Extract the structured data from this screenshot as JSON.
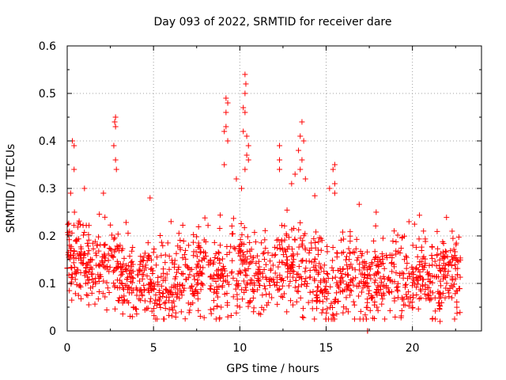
{
  "chart_data": {
    "type": "scatter",
    "title": "Day 093 of 2022, SRMTID for receiver dare",
    "xlabel": "GPS time / hours",
    "ylabel": "SRMTID / TECUs",
    "xlim": [
      0,
      24
    ],
    "ylim": [
      0,
      0.6
    ],
    "xticks": [
      0,
      5,
      10,
      15,
      20
    ],
    "xtick_labels": [
      "0",
      "5",
      "10",
      "15",
      "20"
    ],
    "yticks": [
      0,
      0.1,
      0.2,
      0.3,
      0.4,
      0.5,
      0.6
    ],
    "ytick_labels": [
      "0",
      "0.1",
      "0.2",
      "0.3",
      "0.4",
      "0.5",
      "0.6"
    ],
    "grid": true,
    "marker": "+",
    "color": "#ff0000",
    "x_range": [
      0,
      22.8
    ],
    "baseline": [
      [
        0,
        0.16
      ],
      [
        0.5,
        0.15
      ],
      [
        1,
        0.14
      ],
      [
        1.5,
        0.13
      ],
      [
        2,
        0.13
      ],
      [
        2.5,
        0.14
      ],
      [
        3,
        0.13
      ],
      [
        3.5,
        0.1
      ],
      [
        4,
        0.1
      ],
      [
        4.5,
        0.12
      ],
      [
        5,
        0.1
      ],
      [
        5.5,
        0.09
      ],
      [
        6,
        0.08
      ],
      [
        6.5,
        0.1
      ],
      [
        7,
        0.12
      ],
      [
        7.5,
        0.13
      ],
      [
        8,
        0.12
      ],
      [
        8.5,
        0.11
      ],
      [
        9,
        0.11
      ],
      [
        9.5,
        0.12
      ],
      [
        10,
        0.15
      ],
      [
        10.5,
        0.13
      ],
      [
        11,
        0.12
      ],
      [
        11.5,
        0.12
      ],
      [
        12,
        0.13
      ],
      [
        12.5,
        0.14
      ],
      [
        13,
        0.13
      ],
      [
        13.5,
        0.14
      ],
      [
        14,
        0.13
      ],
      [
        14.5,
        0.12
      ],
      [
        15,
        0.08
      ],
      [
        15.5,
        0.08
      ],
      [
        16,
        0.12
      ],
      [
        16.5,
        0.12
      ],
      [
        17,
        0.11
      ],
      [
        17.5,
        0.1
      ],
      [
        18,
        0.11
      ],
      [
        18.5,
        0.11
      ],
      [
        19,
        0.11
      ],
      [
        19.5,
        0.12
      ],
      [
        20,
        0.11
      ],
      [
        20.5,
        0.12
      ],
      [
        21,
        0.1
      ],
      [
        21.5,
        0.1
      ],
      [
        22,
        0.11
      ],
      [
        22.5,
        0.11
      ],
      [
        22.8,
        0.1
      ]
    ],
    "peaks": [
      {
        "x": 0.3,
        "y": 0.4
      },
      {
        "x": 0.4,
        "y": 0.39
      },
      {
        "x": 0.4,
        "y": 0.34
      },
      {
        "x": 0.2,
        "y": 0.29
      },
      {
        "x": 1.0,
        "y": 0.3
      },
      {
        "x": 2.1,
        "y": 0.29
      },
      {
        "x": 2.8,
        "y": 0.45
      },
      {
        "x": 2.75,
        "y": 0.44
      },
      {
        "x": 2.8,
        "y": 0.43
      },
      {
        "x": 2.7,
        "y": 0.39
      },
      {
        "x": 2.8,
        "y": 0.36
      },
      {
        "x": 2.85,
        "y": 0.34
      },
      {
        "x": 4.8,
        "y": 0.28
      },
      {
        "x": 9.2,
        "y": 0.49
      },
      {
        "x": 9.3,
        "y": 0.48
      },
      {
        "x": 9.2,
        "y": 0.46
      },
      {
        "x": 9.2,
        "y": 0.43
      },
      {
        "x": 9.1,
        "y": 0.42
      },
      {
        "x": 9.3,
        "y": 0.4
      },
      {
        "x": 9.1,
        "y": 0.35
      },
      {
        "x": 10.3,
        "y": 0.54
      },
      {
        "x": 10.35,
        "y": 0.52
      },
      {
        "x": 10.3,
        "y": 0.5
      },
      {
        "x": 10.2,
        "y": 0.47
      },
      {
        "x": 10.3,
        "y": 0.46
      },
      {
        "x": 10.2,
        "y": 0.42
      },
      {
        "x": 10.4,
        "y": 0.41
      },
      {
        "x": 10.5,
        "y": 0.39
      },
      {
        "x": 10.4,
        "y": 0.37
      },
      {
        "x": 10.5,
        "y": 0.36
      },
      {
        "x": 10.3,
        "y": 0.34
      },
      {
        "x": 9.8,
        "y": 0.32
      },
      {
        "x": 10.1,
        "y": 0.3
      },
      {
        "x": 12.3,
        "y": 0.39
      },
      {
        "x": 12.3,
        "y": 0.36
      },
      {
        "x": 12.3,
        "y": 0.34
      },
      {
        "x": 13.6,
        "y": 0.44
      },
      {
        "x": 13.5,
        "y": 0.41
      },
      {
        "x": 13.7,
        "y": 0.4
      },
      {
        "x": 13.4,
        "y": 0.38
      },
      {
        "x": 13.6,
        "y": 0.36
      },
      {
        "x": 13.5,
        "y": 0.34
      },
      {
        "x": 13.2,
        "y": 0.33
      },
      {
        "x": 13.8,
        "y": 0.32
      },
      {
        "x": 13.0,
        "y": 0.31
      },
      {
        "x": 15.5,
        "y": 0.35
      },
      {
        "x": 15.4,
        "y": 0.34
      },
      {
        "x": 15.5,
        "y": 0.31
      },
      {
        "x": 15.2,
        "y": 0.3
      },
      {
        "x": 15.5,
        "y": 0.29
      },
      {
        "x": 17.9,
        "y": 0.25
      },
      {
        "x": 19.8,
        "y": 0.23
      },
      {
        "x": 22.3,
        "y": 0.21
      },
      {
        "x": 21.6,
        "y": 0.02
      },
      {
        "x": 17.4,
        "y": 0.0
      },
      {
        "x": 17.4,
        "y": 0.0
      }
    ]
  }
}
